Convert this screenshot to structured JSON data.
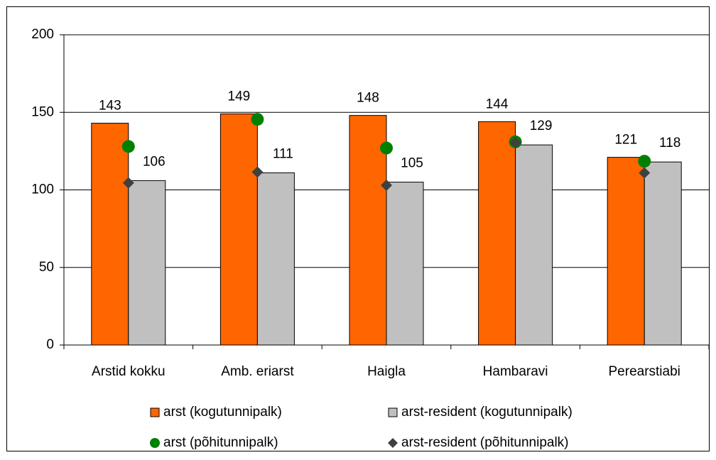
{
  "chart_data": {
    "type": "bar",
    "categories": [
      "Arstid kokku",
      "Amb. eriarst",
      "Haigla",
      "Hambaravi",
      "Perearstiabi"
    ],
    "series": [
      {
        "name": "arst (kogutunnipalk)",
        "color": "#ff6600",
        "marker": "bar",
        "values": [
          143,
          149,
          148,
          144,
          121
        ],
        "show_labels": true
      },
      {
        "name": "arst-resident (kogutunnipalk)",
        "color": "#c0c0c0",
        "marker": "bar",
        "values": [
          106,
          111,
          105,
          129,
          118
        ],
        "show_labels": true
      },
      {
        "name": "arst (põhitunnipalk)",
        "color": "#008000",
        "marker": "circle",
        "values": [
          128,
          145.5,
          127,
          131,
          118.5
        ]
      },
      {
        "name": "arst-resident (põhitunnipalk)",
        "color": "#404040",
        "marker": "diamond",
        "values": [
          104.5,
          111.5,
          103,
          130.5,
          111
        ]
      }
    ],
    "ylim": [
      0,
      200
    ],
    "yticks": [
      0,
      50,
      100,
      150,
      200
    ],
    "grid": true
  }
}
